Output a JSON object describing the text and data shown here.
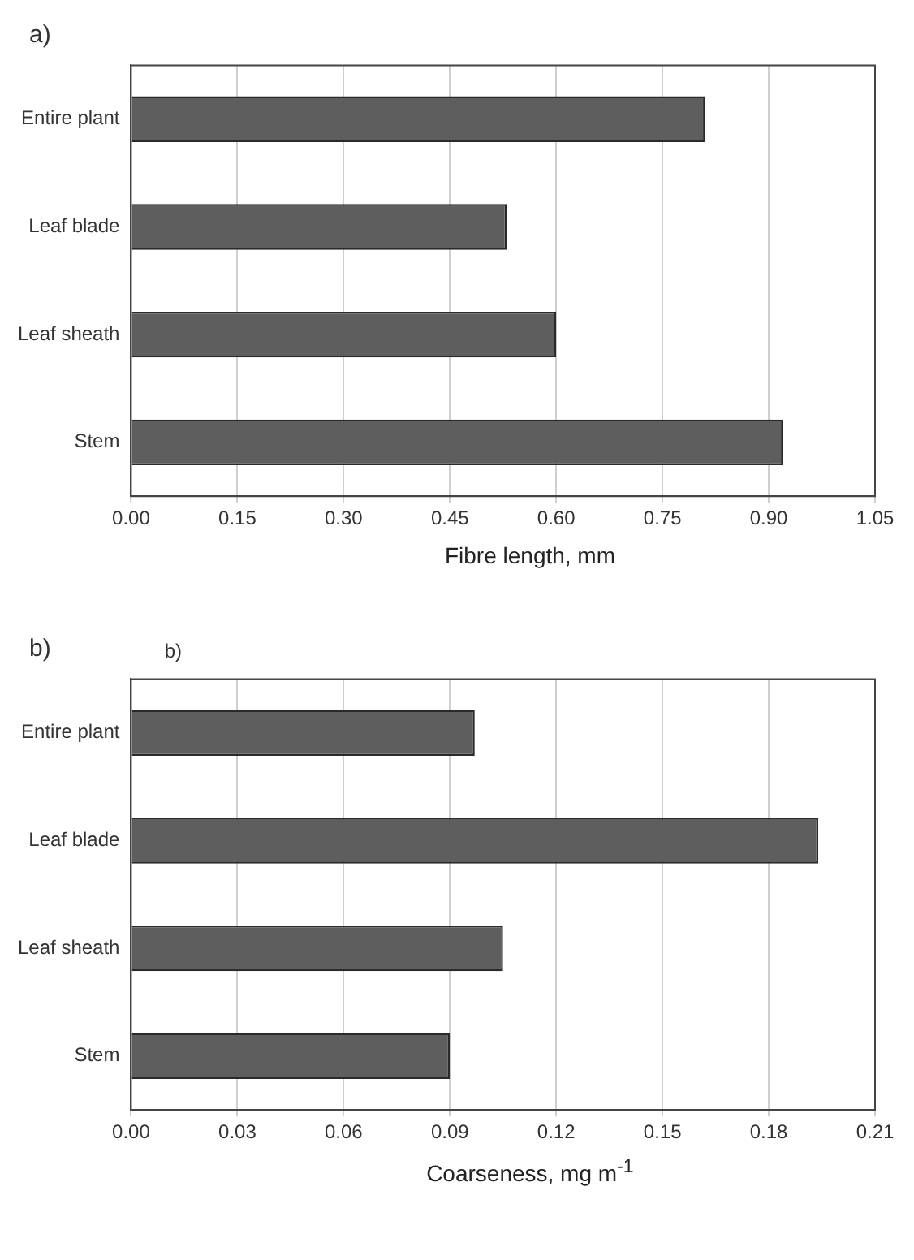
{
  "chart_data": [
    {
      "type": "bar",
      "title": "a)",
      "orientation": "horizontal",
      "categories": [
        "Entire plant",
        "Leaf blade",
        "Leaf sheath",
        "Stem"
      ],
      "values": [
        0.81,
        0.53,
        0.6,
        0.92
      ],
      "color": "#5e5e5e",
      "xlim": [
        0,
        1.05
      ],
      "xticks": [
        {
          "value": 0,
          "label": "0.00"
        },
        {
          "value": 0.15,
          "label": "0.15"
        },
        {
          "value": 0.3,
          "label": "0.30"
        },
        {
          "value": 0.45,
          "label": "0.45"
        },
        {
          "value": 0.6,
          "label": "0.60"
        },
        {
          "value": 0.75,
          "label": "0.75"
        },
        {
          "value": 0.9,
          "label": "0.90"
        },
        {
          "value": 1.05,
          "label": "1.05"
        }
      ],
      "xlabel": "Fibre length, mm",
      "grid": "x",
      "legend": false
    },
    {
      "type": "bar",
      "title": "b)",
      "annotations": [
        "b)"
      ],
      "orientation": "horizontal",
      "categories": [
        "Entire plant",
        "Leaf blade",
        "Leaf sheath",
        "Stem"
      ],
      "values": [
        0.097,
        0.194,
        0.105,
        0.09
      ],
      "color": "#5e5e5e",
      "xlim": [
        0,
        0.21
      ],
      "xticks": [
        {
          "value": 0,
          "label": "0.00"
        },
        {
          "value": 0.03,
          "label": "0.03"
        },
        {
          "value": 0.06,
          "label": "0.06"
        },
        {
          "value": 0.09,
          "label": "0.09"
        },
        {
          "value": 0.12,
          "label": "0.12"
        },
        {
          "value": 0.15,
          "label": "0.15"
        },
        {
          "value": 0.18,
          "label": "0.18"
        },
        {
          "value": 0.21,
          "label": "0.21"
        }
      ],
      "xlabel": "Coarseness, mg m$^{-1}$",
      "grid": "x",
      "legend": false
    }
  ]
}
